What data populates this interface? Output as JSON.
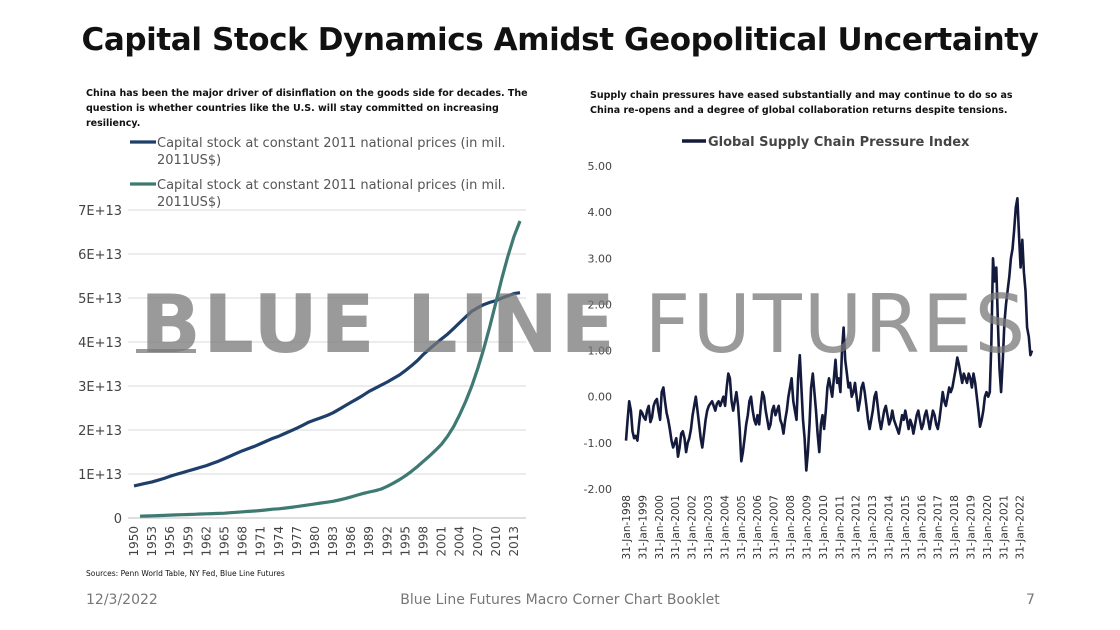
{
  "slide": {
    "title": "Capital Stock Dynamics Amidst Geopolitical Uncertainty",
    "left_subtitle": "China has been the major driver of disinflation on the goods side for decades. The question is whether countries like the U.S. will stay committed on increasing resiliency.",
    "right_subtitle": "Supply chain pressures have eased substantially and may continue to do so as China re-opens and a degree of global collaboration returns despite tensions.",
    "source": "Sources: Penn World Table, NY Fed, Blue Line Futures",
    "footer_date": "12/3/2022",
    "footer_center": "Blue Line Futures Macro Corner Chart Booklet",
    "page_number": "7",
    "watermark_bold": "BLUE LINE",
    "watermark_light": "FUTURES",
    "watermark_color": "#7a7a7a"
  },
  "chart_data": [
    {
      "type": "line",
      "title": "",
      "xlabel": "",
      "ylabel": "",
      "x": [
        1950,
        1951,
        1952,
        1953,
        1954,
        1955,
        1956,
        1957,
        1958,
        1959,
        1960,
        1961,
        1962,
        1963,
        1964,
        1965,
        1966,
        1967,
        1968,
        1969,
        1970,
        1971,
        1972,
        1973,
        1974,
        1975,
        1976,
        1977,
        1978,
        1979,
        1980,
        1981,
        1982,
        1983,
        1984,
        1985,
        1986,
        1987,
        1988,
        1989,
        1990,
        1991,
        1992,
        1993,
        1994,
        1995,
        1996,
        1997,
        1998,
        1999,
        2000,
        2001,
        2002,
        2003,
        2004,
        2005,
        2006,
        2007,
        2008,
        2009,
        2010,
        2011,
        2012,
        2013,
        2014
      ],
      "xticks": [
        "1950",
        "1953",
        "1956",
        "1959",
        "1962",
        "1965",
        "1968",
        "1971",
        "1974",
        "1977",
        "1980",
        "1983",
        "1986",
        "1989",
        "1992",
        "1995",
        "1998",
        "2001",
        "2004",
        "2007",
        "2010",
        "2013"
      ],
      "yticks": [
        "0",
        "1E+13",
        "2E+13",
        "3E+13",
        "4E+13",
        "5E+13",
        "6E+13",
        "7E+13"
      ],
      "ylim": [
        0,
        70000000000000.0
      ],
      "grid": true,
      "legend_position": "top-left",
      "series": [
        {
          "name": "Capital stock at constant 2011 national prices (in mil. 2011US$)",
          "color": "#1f3f6b",
          "values": [
            7300000000000.0,
            7600000000000.0,
            7900000000000.0,
            8200000000000.0,
            8600000000000.0,
            9000000000000.0,
            9500000000000.0,
            9900000000000.0,
            10300000000000.0,
            10700000000000.0,
            11100000000000.0,
            11500000000000.0,
            11900000000000.0,
            12400000000000.0,
            12900000000000.0,
            13500000000000.0,
            14100000000000.0,
            14700000000000.0,
            15300000000000.0,
            15800000000000.0,
            16300000000000.0,
            16900000000000.0,
            17500000000000.0,
            18100000000000.0,
            18600000000000.0,
            19200000000000.0,
            19800000000000.0,
            20400000000000.0,
            21100000000000.0,
            21800000000000.0,
            22300000000000.0,
            22800000000000.0,
            23300000000000.0,
            23900000000000.0,
            24700000000000.0,
            25500000000000.0,
            26300000000000.0,
            27100000000000.0,
            27900000000000.0,
            28800000000000.0,
            29500000000000.0,
            30200000000000.0,
            30900000000000.0,
            31700000000000.0,
            32500000000000.0,
            33500000000000.0,
            34600000000000.0,
            35800000000000.0,
            37200000000000.0,
            38400000000000.0,
            39600000000000.0,
            40700000000000.0,
            41800000000000.0,
            43100000000000.0,
            44400000000000.0,
            45700000000000.0,
            47000000000000.0,
            47800000000000.0,
            48500000000000.0,
            49000000000000.0,
            49400000000000.0,
            50000000000000.0,
            50500000000000.0,
            51000000000000.0,
            51200000000000.0
          ]
        },
        {
          "name": "Capital stock at constant 2011 national prices (in mil. 2011US$)",
          "color": "#3e7a72",
          "values": [
            null,
            400000000000.0,
            450000000000.0,
            500000000000.0,
            550000000000.0,
            600000000000.0,
            650000000000.0,
            700000000000.0,
            750000000000.0,
            800000000000.0,
            850000000000.0,
            900000000000.0,
            950000000000.0,
            1000000000000.0,
            1050000000000.0,
            1100000000000.0,
            1200000000000.0,
            1300000000000.0,
            1400000000000.0,
            1500000000000.0,
            1600000000000.0,
            1700000000000.0,
            1850000000000.0,
            2000000000000.0,
            2100000000000.0,
            2250000000000.0,
            2400000000000.0,
            2600000000000.0,
            2800000000000.0,
            3000000000000.0,
            3200000000000.0,
            3400000000000.0,
            3600000000000.0,
            3800000000000.0,
            4100000000000.0,
            4400000000000.0,
            4800000000000.0,
            5200000000000.0,
            5600000000000.0,
            5900000000000.0,
            6200000000000.0,
            6600000000000.0,
            7200000000000.0,
            7900000000000.0,
            8700000000000.0,
            9600000000000.0,
            10600000000000.0,
            11700000000000.0,
            12900000000000.0,
            14100000000000.0,
            15400000000000.0,
            16800000000000.0,
            18600000000000.0,
            20800000000000.0,
            23500000000000.0,
            26500000000000.0,
            30000000000000.0,
            34000000000000.0,
            38500000000000.0,
            43500000000000.0,
            49000000000000.0,
            54500000000000.0,
            59500000000000.0,
            64000000000000.0,
            67500000000000.0
          ]
        }
      ]
    },
    {
      "type": "line",
      "title": "",
      "xlabel": "",
      "ylabel": "",
      "x_start": "31-Jan-1998",
      "x_end": "31-Oct-2022",
      "xticks": [
        "31-Jan-1998",
        "31-Jan-1999",
        "31-Jan-2000",
        "31-Jan-2001",
        "31-Jan-2002",
        "31-Jan-2003",
        "31-Jan-2004",
        "31-Jan-2005",
        "31-Jan-2006",
        "31-Jan-2007",
        "31-Jan-2008",
        "31-Jan-2009",
        "31-Jan-2010",
        "31-Jan-2011",
        "31-Jan-2012",
        "31-Jan-2013",
        "31-Jan-2014",
        "31-Jan-2015",
        "31-Jan-2016",
        "31-Jan-2017",
        "31-Jan-2018",
        "31-Jan-2019",
        "31-Jan-2020",
        "31-Jan-2021",
        "31-Jan-2022"
      ],
      "yticks": [
        "5.00",
        "4.00",
        "3.00",
        "2.00",
        "1.00",
        "0.00",
        "-1.00",
        "-2.00"
      ],
      "ylim": [
        -2,
        5
      ],
      "grid": false,
      "legend_position": "top",
      "series": [
        {
          "name": "Global Supply Chain Pressure Index",
          "color": "#141a3c",
          "values": [
            -0.95,
            -0.5,
            -0.1,
            -0.3,
            -0.75,
            -0.9,
            -0.85,
            -0.95,
            -0.6,
            -0.3,
            -0.35,
            -0.45,
            -0.5,
            -0.3,
            -0.2,
            -0.55,
            -0.45,
            -0.2,
            -0.1,
            -0.05,
            -0.3,
            -0.5,
            0.1,
            0.2,
            -0.1,
            -0.35,
            -0.5,
            -0.7,
            -0.95,
            -1.1,
            -1.0,
            -0.9,
            -1.3,
            -1.1,
            -0.8,
            -0.75,
            -0.9,
            -1.2,
            -1.0,
            -0.9,
            -0.7,
            -0.4,
            -0.2,
            0.0,
            -0.3,
            -0.6,
            -0.9,
            -1.1,
            -0.8,
            -0.5,
            -0.3,
            -0.2,
            -0.15,
            -0.1,
            -0.2,
            -0.3,
            -0.15,
            -0.1,
            -0.2,
            -0.1,
            0.0,
            -0.2,
            0.2,
            0.5,
            0.4,
            -0.1,
            -0.3,
            -0.1,
            0.1,
            -0.2,
            -0.7,
            -1.4,
            -1.2,
            -0.9,
            -0.6,
            -0.4,
            -0.1,
            0.0,
            -0.3,
            -0.5,
            -0.6,
            -0.4,
            -0.6,
            -0.2,
            0.1,
            0.0,
            -0.3,
            -0.5,
            -0.7,
            -0.6,
            -0.3,
            -0.2,
            -0.4,
            -0.3,
            -0.2,
            -0.5,
            -0.6,
            -0.8,
            -0.5,
            -0.3,
            0.0,
            0.2,
            0.4,
            -0.1,
            -0.3,
            -0.5,
            0.4,
            0.9,
            0.2,
            -0.5,
            -0.9,
            -1.6,
            -1.2,
            -0.6,
            0.2,
            0.5,
            0.1,
            -0.3,
            -0.8,
            -1.2,
            -0.6,
            -0.4,
            -0.7,
            -0.3,
            0.2,
            0.4,
            0.2,
            0.0,
            0.4,
            0.8,
            0.3,
            0.4,
            0.1,
            1.0,
            1.5,
            0.8,
            0.5,
            0.2,
            0.3,
            0.0,
            0.1,
            0.3,
            0.0,
            -0.3,
            -0.1,
            0.2,
            0.3,
            0.1,
            -0.2,
            -0.5,
            -0.7,
            -0.5,
            -0.3,
            0.0,
            0.1,
            -0.2,
            -0.5,
            -0.7,
            -0.5,
            -0.3,
            -0.2,
            -0.4,
            -0.6,
            -0.5,
            -0.3,
            -0.5,
            -0.6,
            -0.7,
            -0.8,
            -0.6,
            -0.4,
            -0.5,
            -0.3,
            -0.5,
            -0.7,
            -0.5,
            -0.6,
            -0.8,
            -0.6,
            -0.4,
            -0.3,
            -0.5,
            -0.7,
            -0.6,
            -0.4,
            -0.3,
            -0.5,
            -0.7,
            -0.5,
            -0.3,
            -0.4,
            -0.6,
            -0.7,
            -0.5,
            -0.2,
            0.1,
            -0.1,
            -0.2,
            0.0,
            0.2,
            0.1,
            0.2,
            0.4,
            0.6,
            0.85,
            0.7,
            0.5,
            0.3,
            0.5,
            0.4,
            0.3,
            0.5,
            0.4,
            0.2,
            0.5,
            0.3,
            0.0,
            -0.3,
            -0.65,
            -0.5,
            -0.3,
            0.0,
            0.1,
            0.0,
            0.1,
            1.2,
            3.0,
            2.5,
            2.8,
            1.6,
            0.6,
            0.1,
            0.8,
            1.6,
            2.0,
            2.3,
            2.6,
            3.0,
            3.2,
            3.6,
            4.1,
            4.3,
            3.5,
            2.8,
            3.4,
            2.7,
            2.3,
            1.5,
            1.3,
            0.9,
            1.0
          ]
        }
      ]
    }
  ]
}
